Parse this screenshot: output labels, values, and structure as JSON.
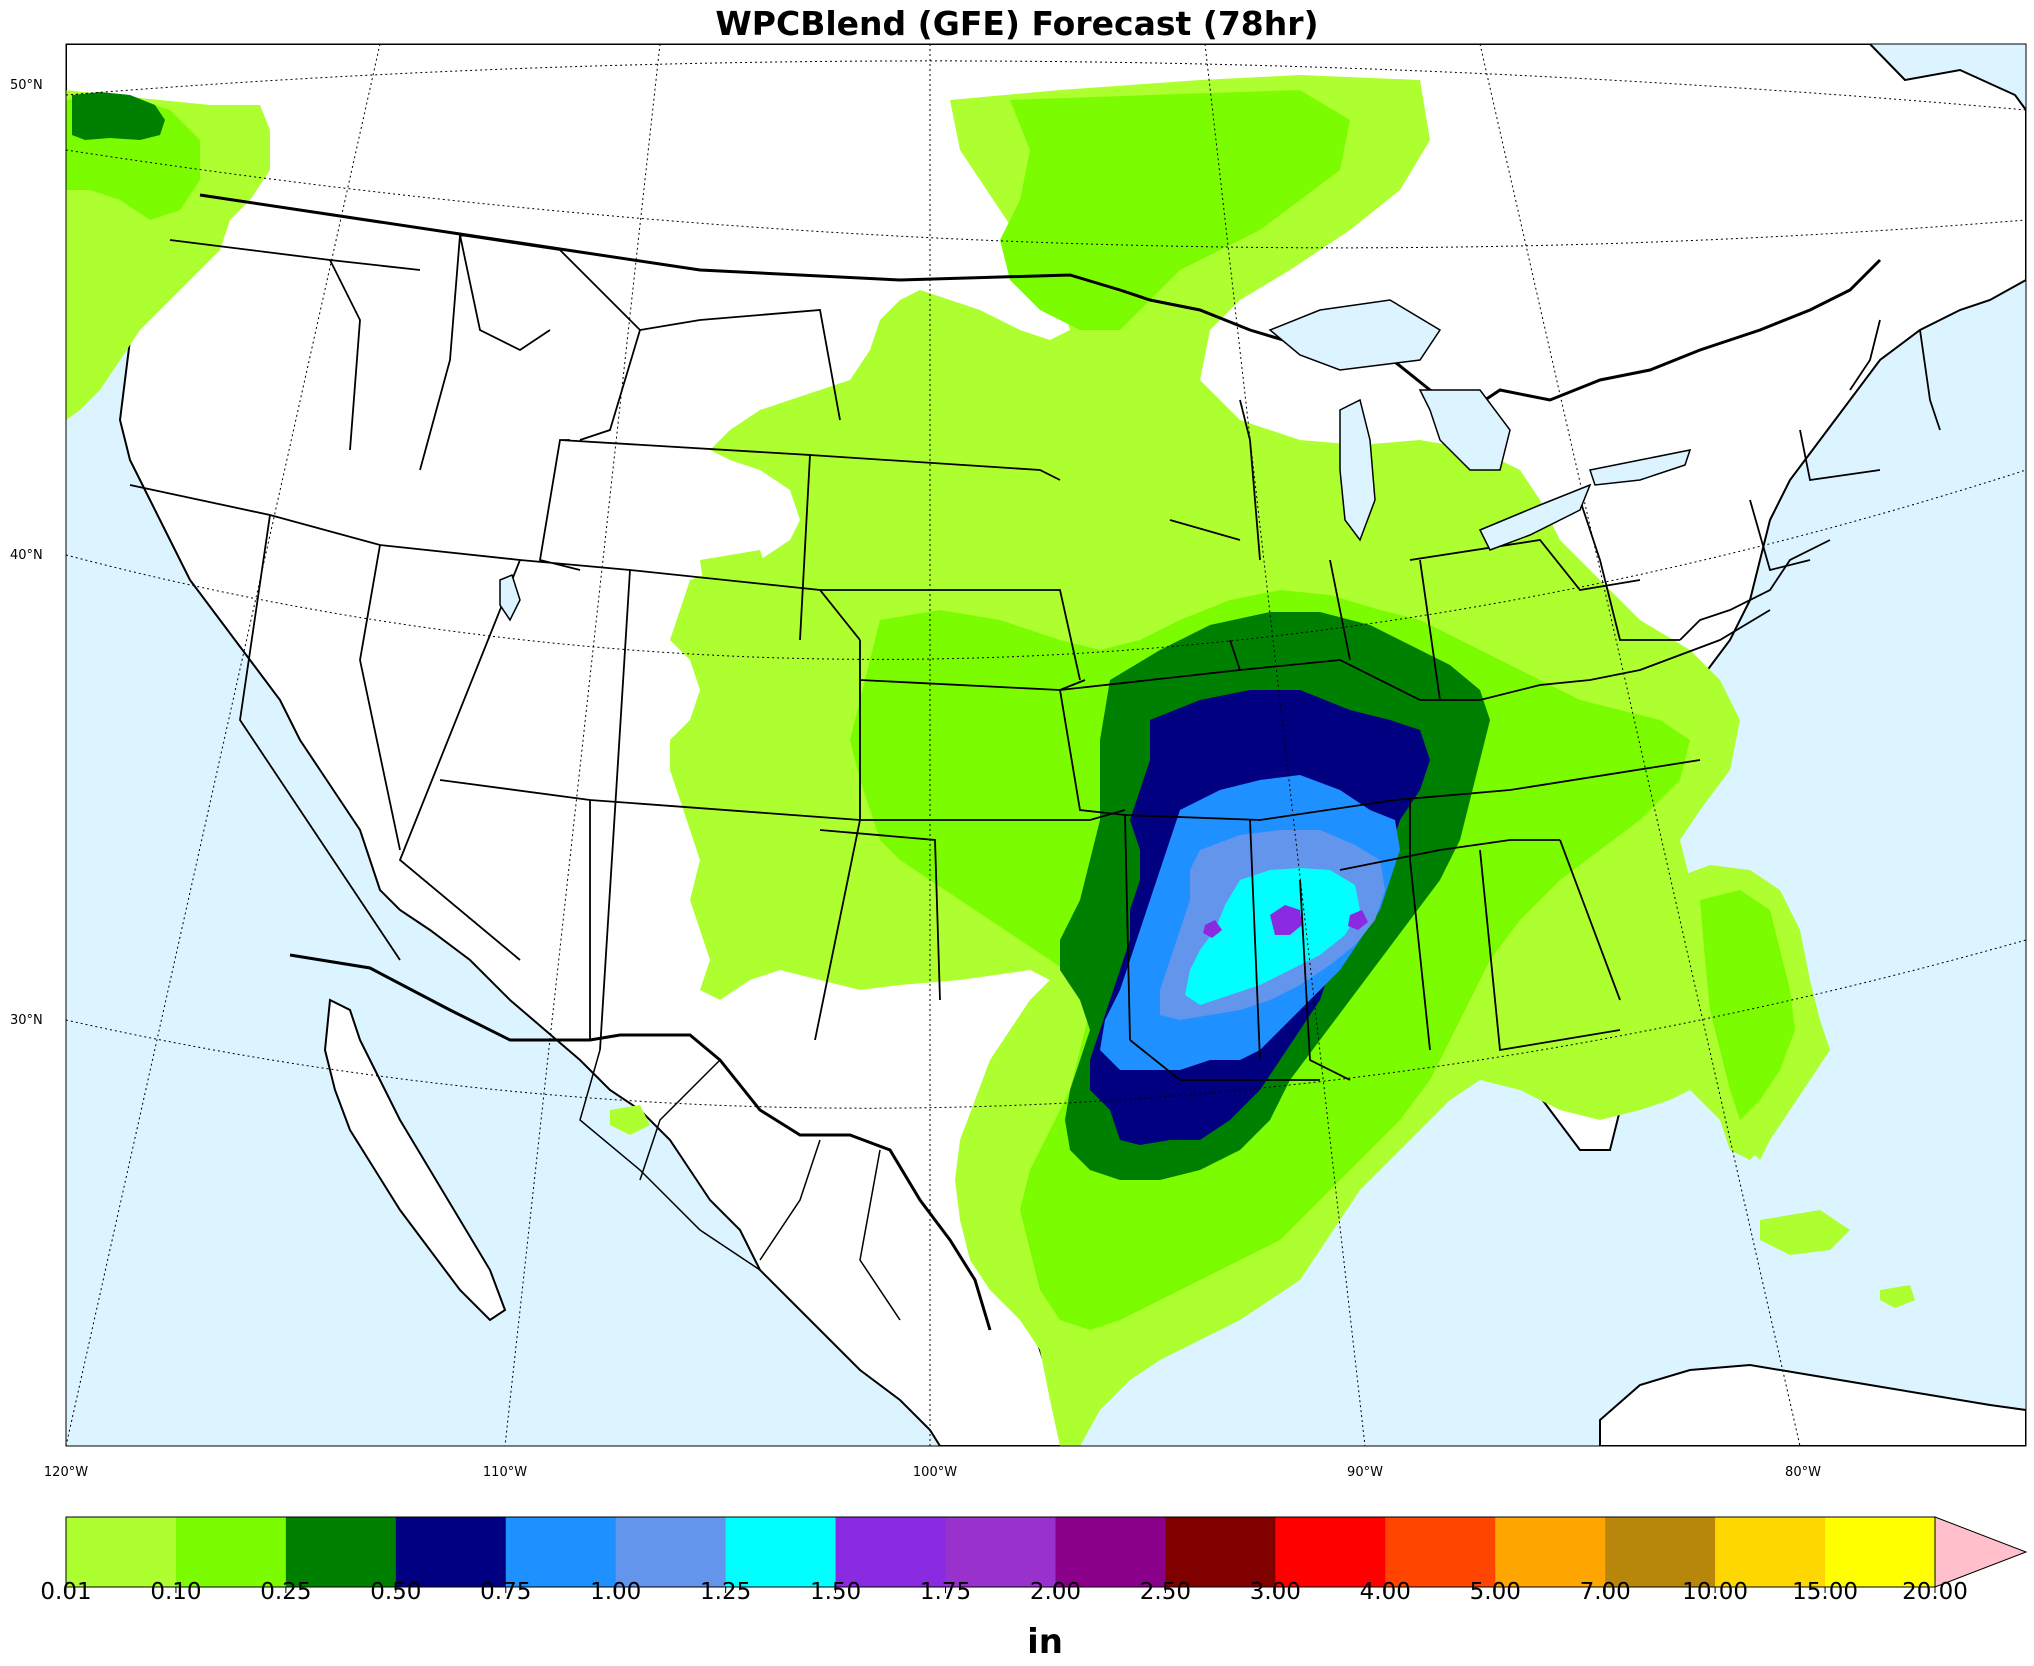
{
  "title": "WPCBlend (GFE) Forecast (78hr)",
  "lat_labels": [
    "50°N",
    "40°N",
    "30°N"
  ],
  "lon_labels": [
    "120°W",
    "110°W",
    "100°W",
    "90°W",
    "80°W"
  ],
  "colorbar": {
    "units": "in",
    "ticks": [
      "0.01",
      "0.10",
      "0.25",
      "0.50",
      "0.75",
      "1.00",
      "1.25",
      "1.50",
      "1.75",
      "2.00",
      "2.50",
      "3.00",
      "4.00",
      "5.00",
      "7.00",
      "10.00",
      "15.00",
      "20.00"
    ],
    "colors": [
      "#adff2f",
      "#7cfc00",
      "#008000",
      "#000080",
      "#1e90ff",
      "#6495ed",
      "#00ffff",
      "#8a2be2",
      "#9932cc",
      "#8b008b",
      "#800000",
      "#ff0000",
      "#ff4500",
      "#ffa500",
      "#b8860b",
      "#ffd700",
      "#ffff00"
    ],
    "extend_color": "#ffc0cb"
  },
  "colors": {
    "ocean": "#dcf4ff",
    "land": "#ffffff"
  }
}
